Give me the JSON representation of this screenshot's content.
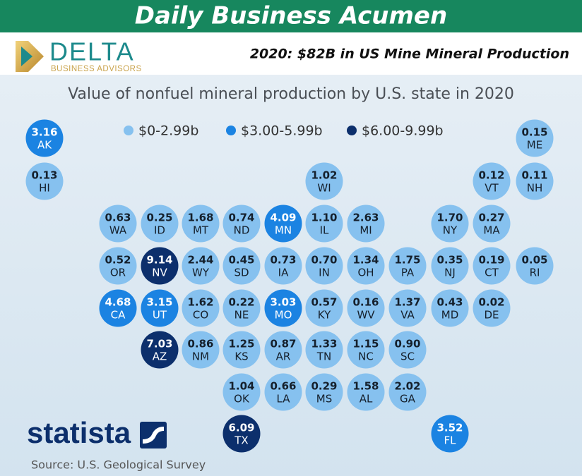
{
  "header": {
    "banner": "Daily Business Acumen",
    "logo_name": "DELTA",
    "logo_tagline": "BUSINESS ADVISORS",
    "headline": "2020: $82B in US Mine Mineral Production"
  },
  "chart_data": {
    "type": "tile-map",
    "title": "Value of nonfuel mineral production by U.S. state in 2020",
    "legend": [
      {
        "label": "$0-2.99b",
        "color": "#86c1ef"
      },
      {
        "label": "$3.00-5.99b",
        "color": "#1b83e2"
      },
      {
        "label": "$6.00-9.99b",
        "color": "#0c2f6c"
      }
    ],
    "states": [
      {
        "code": "AK",
        "value": 3.16,
        "value_label": "3.16",
        "color": "#1b83e2"
      },
      {
        "code": "ME",
        "value": 0.15,
        "value_label": "0.15",
        "color": "#86c1ef"
      },
      {
        "code": "HI",
        "value": 0.13,
        "value_label": "0.13",
        "color": "#86c1ef"
      },
      {
        "code": "WI",
        "value": 1.02,
        "value_label": "1.02",
        "color": "#86c1ef"
      },
      {
        "code": "VT",
        "value": 0.12,
        "value_label": "0.12",
        "color": "#86c1ef"
      },
      {
        "code": "NH",
        "value": 0.11,
        "value_label": "0.11",
        "color": "#86c1ef"
      },
      {
        "code": "WA",
        "value": 0.63,
        "value_label": "0.63",
        "color": "#86c1ef"
      },
      {
        "code": "ID",
        "value": 0.25,
        "value_label": "0.25",
        "color": "#86c1ef"
      },
      {
        "code": "MT",
        "value": 1.68,
        "value_label": "1.68",
        "color": "#86c1ef"
      },
      {
        "code": "ND",
        "value": 0.74,
        "value_label": "0.74",
        "color": "#86c1ef"
      },
      {
        "code": "MN",
        "value": 4.09,
        "value_label": "4.09",
        "color": "#1b83e2"
      },
      {
        "code": "IL",
        "value": 1.1,
        "value_label": "1.10",
        "color": "#86c1ef"
      },
      {
        "code": "MI",
        "value": 2.63,
        "value_label": "2.63",
        "color": "#86c1ef"
      },
      {
        "code": "NY",
        "value": 1.7,
        "value_label": "1.70",
        "color": "#86c1ef"
      },
      {
        "code": "MA",
        "value": 0.27,
        "value_label": "0.27",
        "color": "#86c1ef"
      },
      {
        "code": "OR",
        "value": 0.52,
        "value_label": "0.52",
        "color": "#86c1ef"
      },
      {
        "code": "NV",
        "value": 9.14,
        "value_label": "9.14",
        "color": "#0c2f6c"
      },
      {
        "code": "WY",
        "value": 2.44,
        "value_label": "2.44",
        "color": "#86c1ef"
      },
      {
        "code": "SD",
        "value": 0.45,
        "value_label": "0.45",
        "color": "#86c1ef"
      },
      {
        "code": "IA",
        "value": 0.73,
        "value_label": "0.73",
        "color": "#86c1ef"
      },
      {
        "code": "IN",
        "value": 0.7,
        "value_label": "0.70",
        "color": "#86c1ef"
      },
      {
        "code": "OH",
        "value": 1.34,
        "value_label": "1.34",
        "color": "#86c1ef"
      },
      {
        "code": "PA",
        "value": 1.75,
        "value_label": "1.75",
        "color": "#86c1ef"
      },
      {
        "code": "NJ",
        "value": 0.35,
        "value_label": "0.35",
        "color": "#86c1ef"
      },
      {
        "code": "CT",
        "value": 0.19,
        "value_label": "0.19",
        "color": "#86c1ef"
      },
      {
        "code": "RI",
        "value": 0.05,
        "value_label": "0.05",
        "color": "#86c1ef"
      },
      {
        "code": "CA",
        "value": 4.68,
        "value_label": "4.68",
        "color": "#1b83e2"
      },
      {
        "code": "UT",
        "value": 3.15,
        "value_label": "3.15",
        "color": "#1b83e2"
      },
      {
        "code": "CO",
        "value": 1.62,
        "value_label": "1.62",
        "color": "#86c1ef"
      },
      {
        "code": "NE",
        "value": 0.22,
        "value_label": "0.22",
        "color": "#86c1ef"
      },
      {
        "code": "MO",
        "value": 3.03,
        "value_label": "3.03",
        "color": "#1b83e2"
      },
      {
        "code": "KY",
        "value": 0.57,
        "value_label": "0.57",
        "color": "#86c1ef"
      },
      {
        "code": "WV",
        "value": 0.16,
        "value_label": "0.16",
        "color": "#86c1ef"
      },
      {
        "code": "VA",
        "value": 1.37,
        "value_label": "1.37",
        "color": "#86c1ef"
      },
      {
        "code": "MD",
        "value": 0.43,
        "value_label": "0.43",
        "color": "#86c1ef"
      },
      {
        "code": "DE",
        "value": 0.02,
        "value_label": "0.02",
        "color": "#86c1ef"
      },
      {
        "code": "AZ",
        "value": 7.03,
        "value_label": "7.03",
        "color": "#0c2f6c"
      },
      {
        "code": "NM",
        "value": 0.86,
        "value_label": "0.86",
        "color": "#86c1ef"
      },
      {
        "code": "KS",
        "value": 1.25,
        "value_label": "1.25",
        "color": "#86c1ef"
      },
      {
        "code": "AR",
        "value": 0.87,
        "value_label": "0.87",
        "color": "#86c1ef"
      },
      {
        "code": "TN",
        "value": 1.33,
        "value_label": "1.33",
        "color": "#86c1ef"
      },
      {
        "code": "NC",
        "value": 1.15,
        "value_label": "1.15",
        "color": "#86c1ef"
      },
      {
        "code": "SC",
        "value": 0.9,
        "value_label": "0.90",
        "color": "#86c1ef"
      },
      {
        "code": "OK",
        "value": 1.04,
        "value_label": "1.04",
        "color": "#86c1ef"
      },
      {
        "code": "LA",
        "value": 0.66,
        "value_label": "0.66",
        "color": "#86c1ef"
      },
      {
        "code": "MS",
        "value": 0.29,
        "value_label": "0.29",
        "color": "#86c1ef"
      },
      {
        "code": "AL",
        "value": 1.58,
        "value_label": "1.58",
        "color": "#86c1ef"
      },
      {
        "code": "GA",
        "value": 2.02,
        "value_label": "2.02",
        "color": "#86c1ef"
      },
      {
        "code": "TX",
        "value": 6.09,
        "value_label": "6.09",
        "color": "#0c2f6c"
      },
      {
        "code": "FL",
        "value": 3.52,
        "value_label": "3.52",
        "color": "#1b83e2"
      }
    ]
  },
  "footer": {
    "brand": "statista",
    "source": "Source: U.S. Geological Survey"
  }
}
